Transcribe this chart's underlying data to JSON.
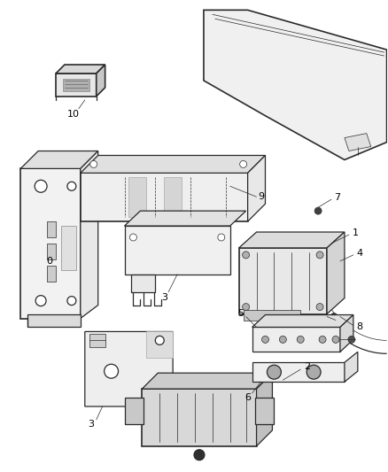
{
  "background_color": "#ffffff",
  "line_color": "#2a2a2a",
  "label_color": "#000000",
  "fig_width": 4.38,
  "fig_height": 5.33,
  "dpi": 100,
  "lw_main": 0.9,
  "lw_thin": 0.5,
  "lw_thick": 1.2
}
